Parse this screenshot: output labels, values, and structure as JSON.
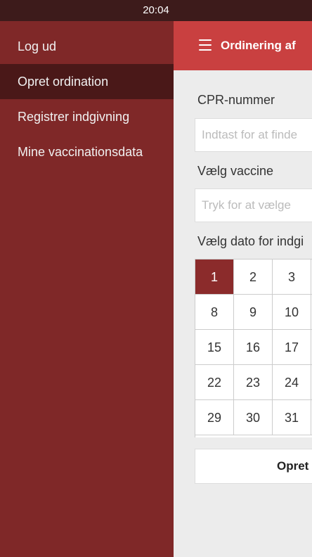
{
  "status_bar": {
    "time": "20:04"
  },
  "sidebar": {
    "items": [
      {
        "label": "Log ud",
        "active": false
      },
      {
        "label": "Opret ordination",
        "active": true
      },
      {
        "label": "Registrer indgivning",
        "active": false
      },
      {
        "label": "Mine vaccinationsdata",
        "active": false
      }
    ]
  },
  "navbar": {
    "menu_icon": "hamburger-menu-icon",
    "title": "Ordinering af"
  },
  "form": {
    "cpr_label": "CPR-nummer",
    "cpr_placeholder": "Indtast for at finde",
    "vaccine_label": "Vælg vaccine",
    "vaccine_placeholder": "Tryk for at vælge",
    "date_label": "Vælg dato for indgi",
    "calendar": {
      "rows": [
        [
          "1",
          "2",
          "3"
        ],
        [
          "8",
          "9",
          "10"
        ],
        [
          "15",
          "16",
          "17"
        ],
        [
          "22",
          "23",
          "24"
        ],
        [
          "29",
          "30",
          "31"
        ]
      ],
      "selected": "1"
    },
    "submit_label": "Opret"
  },
  "colors": {
    "sidebar_bg": "#7f2828",
    "sidebar_active_bg": "#4a1818",
    "navbar_bg": "#c94040",
    "selected_day_bg": "#8b2b2b",
    "status_bar_bg": "#3d1b1b"
  }
}
